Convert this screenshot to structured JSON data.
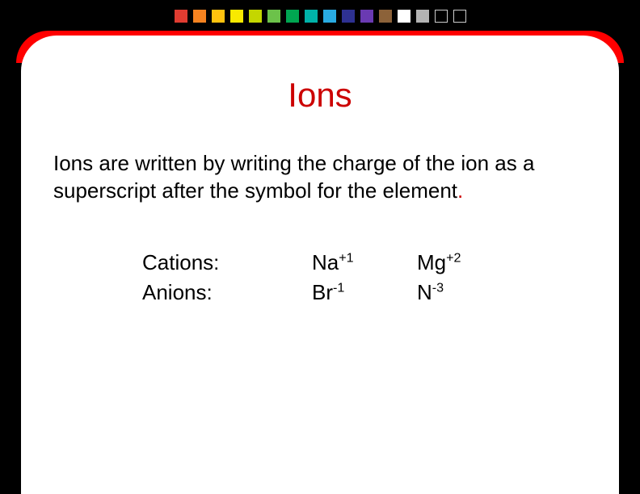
{
  "squares": {
    "colors": [
      "#e03c31",
      "#f58220",
      "#ffc20e",
      "#f9e900",
      "#c4d600",
      "#6cc24a",
      "#00a651",
      "#00b2a9",
      "#29abe2",
      "#2e3192",
      "#6a3ab2",
      "#8c6239",
      "#ffffff",
      "#b3b3b3"
    ],
    "outline_count": 2
  },
  "title": "Ions",
  "description_main": "Ions are written by writing the charge of the ion as a superscript after the symbol for the element",
  "description_dot": ".",
  "rows": [
    {
      "label": "Cations:",
      "cells": [
        {
          "sym": "Na",
          "sup": "+1"
        },
        {
          "sym": "Mg",
          "sup": "+2"
        }
      ]
    },
    {
      "label": "Anions:",
      "cells": [
        {
          "sym": "Br",
          "sup": "-1"
        },
        {
          "sym": "N",
          "sup": "-3"
        }
      ]
    }
  ]
}
